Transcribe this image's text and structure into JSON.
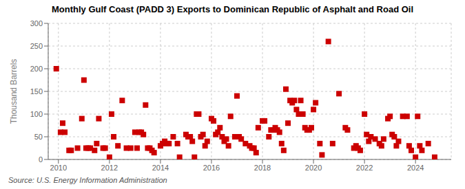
{
  "chart_data": {
    "type": "scatter",
    "title": "Monthly Gulf Coast (PADD 3) Exports to Dominican Republic of Asphalt and Road Oil",
    "ylabel": "Thousand Barrels",
    "annotations": [
      "Source: U.S. Energy Information Administration"
    ],
    "color": "#cc0000",
    "marker": "square",
    "grid": true,
    "xlim": [
      2009.6,
      2025.4
    ],
    "xticks": [
      2010,
      2012,
      2014,
      2016,
      2018,
      2020,
      2022,
      2024
    ],
    "ylim": [
      0,
      300
    ],
    "yticks": [
      0,
      50,
      100,
      150,
      200,
      250,
      300
    ],
    "x": [
      2009.917,
      2010.083,
      2010.167,
      2010.25,
      2010.417,
      2010.5,
      2010.75,
      2010.917,
      2011.0,
      2011.083,
      2011.167,
      2011.25,
      2011.417,
      2011.5,
      2011.583,
      2011.75,
      2011.833,
      2012.0,
      2012.083,
      2012.167,
      2012.333,
      2012.5,
      2012.667,
      2012.833,
      2013.0,
      2013.083,
      2013.167,
      2013.25,
      2013.333,
      2013.417,
      2013.5,
      2013.583,
      2013.667,
      2013.75,
      2014.0,
      2014.083,
      2014.167,
      2014.25,
      2014.333,
      2014.5,
      2014.667,
      2014.75,
      2015.0,
      2015.083,
      2015.167,
      2015.25,
      2015.333,
      2015.417,
      2015.5,
      2015.583,
      2015.667,
      2015.75,
      2015.833,
      2016.0,
      2016.083,
      2016.167,
      2016.25,
      2016.333,
      2016.417,
      2016.5,
      2016.583,
      2016.667,
      2016.75,
      2016.917,
      2017.0,
      2017.083,
      2017.167,
      2017.333,
      2017.5,
      2017.583,
      2017.667,
      2017.75,
      2017.833,
      2018.0,
      2018.083,
      2018.25,
      2018.333,
      2018.417,
      2018.5,
      2018.583,
      2018.667,
      2018.75,
      2018.833,
      2018.917,
      2019.0,
      2019.083,
      2019.167,
      2019.25,
      2019.333,
      2019.417,
      2019.5,
      2019.583,
      2019.667,
      2019.75,
      2019.833,
      2019.917,
      2020.0,
      2020.083,
      2020.25,
      2020.333,
      2020.583,
      2020.75,
      2021.0,
      2021.25,
      2021.333,
      2021.583,
      2021.667,
      2021.75,
      2021.833,
      2022.0,
      2022.083,
      2022.167,
      2022.25,
      2022.417,
      2022.583,
      2022.667,
      2022.75,
      2022.917,
      2023.0,
      2023.083,
      2023.167,
      2023.25,
      2023.333,
      2023.5,
      2023.667,
      2023.75,
      2023.833,
      2024.0,
      2024.083,
      2024.167,
      2024.25,
      2024.5,
      2024.75
    ],
    "values": [
      200,
      60,
      80,
      60,
      20,
      20,
      25,
      90,
      175,
      25,
      25,
      25,
      20,
      35,
      90,
      25,
      25,
      5,
      100,
      50,
      30,
      130,
      25,
      25,
      60,
      25,
      60,
      60,
      55,
      120,
      25,
      25,
      20,
      15,
      30,
      35,
      40,
      35,
      35,
      50,
      35,
      5,
      55,
      50,
      50,
      40,
      5,
      100,
      100,
      50,
      55,
      30,
      40,
      90,
      85,
      55,
      60,
      70,
      50,
      40,
      45,
      30,
      95,
      50,
      140,
      50,
      45,
      35,
      30,
      25,
      25,
      15,
      70,
      85,
      85,
      50,
      65,
      65,
      70,
      65,
      60,
      35,
      20,
      155,
      80,
      130,
      125,
      130,
      110,
      100,
      130,
      100,
      70,
      65,
      65,
      70,
      110,
      125,
      35,
      10,
      260,
      35,
      145,
      70,
      65,
      25,
      30,
      25,
      20,
      100,
      55,
      40,
      50,
      45,
      35,
      30,
      45,
      90,
      95,
      55,
      50,
      30,
      40,
      95,
      95,
      30,
      20,
      5,
      95,
      30,
      20,
      35,
      5
    ]
  }
}
